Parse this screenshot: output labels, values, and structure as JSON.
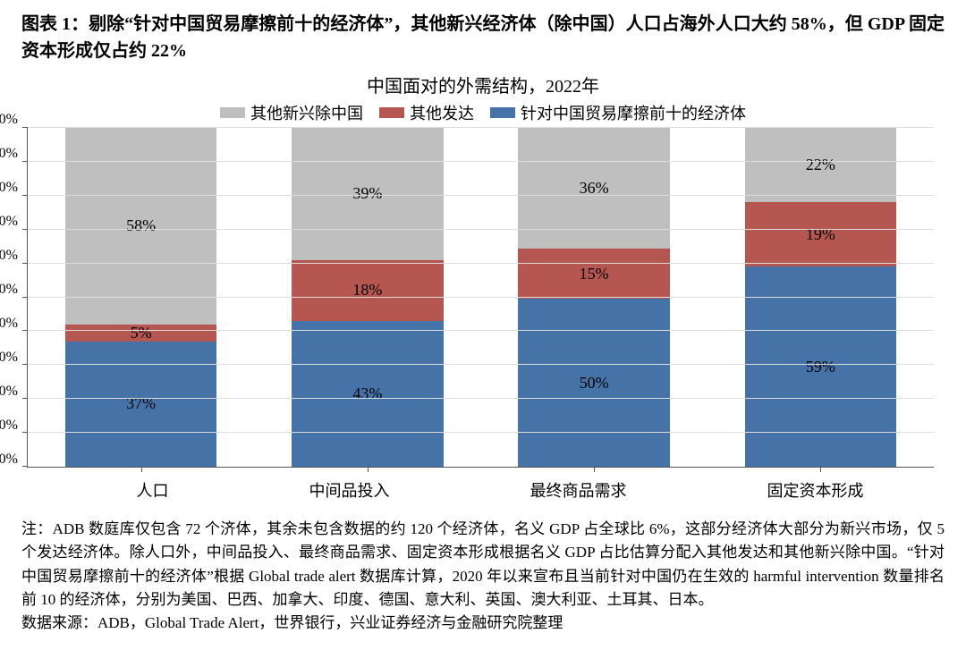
{
  "figure_label": "图表 1：剔除“针对中国贸易摩擦前十的经济体”，其他新兴经济体（除中国）人口占海外人口大约 58%，但 GDP 固定资本形成仅占约 22%",
  "chart": {
    "type": "stacked-bar",
    "title": "中国面对的外需结构，2022年",
    "title_fontsize": 20,
    "legend_fontsize": 18,
    "axis_fontsize": 16,
    "datalabel_fontsize": 18,
    "background_color": "#ffffff",
    "grid_color": "#dddddd",
    "axis_color": "#555555",
    "ylim": [
      0,
      100
    ],
    "ytick_step": 10,
    "y_tick_suffix": "%",
    "bar_width_ratio": 0.88,
    "categories": [
      "人口",
      "中间品投入",
      "最终商品需求",
      "固定资本形成"
    ],
    "series": [
      {
        "name": "针对中国贸易摩擦前十的经济体",
        "color": "#4573a7",
        "values": [
          37,
          43,
          50,
          59
        ]
      },
      {
        "name": "其他发达",
        "color": "#b65651",
        "values": [
          5,
          18,
          15,
          19
        ]
      },
      {
        "name": "其他新兴除中国",
        "color": "#bfbfbf",
        "values": [
          58,
          39,
          36,
          22
        ]
      }
    ],
    "legend_order": [
      "其他新兴除中国",
      "其他发达",
      "针对中国贸易摩擦前十的经济体"
    ]
  },
  "footnote": "注：ADB 数庭库仅包含 72 个济体，其余未包含数据的约 120 个经济体，名义 GDP 占全球比 6%，这部分经济体大部分为新兴市场，仅 5 个发达经济体。除人口外，中间品投入、最终商品需求、固定资本形成根据名义 GDP 占比估算分配入其他发达和其他新兴除中国。“针对中国贸易摩擦前十的经济体”根据 Global trade alert 数据库计算，2020 年以来宣布且当前针对中国仍在生效的 harmful intervention 数量排名前 10 的经济体，分别为美国、巴西、加拿大、印度、德国、意大利、英国、澳大利亚、土耳其、日本。",
  "source": "数据来源：ADB，Global Trade Alert，世界银行，兴业证券经济与金融研究院整理"
}
